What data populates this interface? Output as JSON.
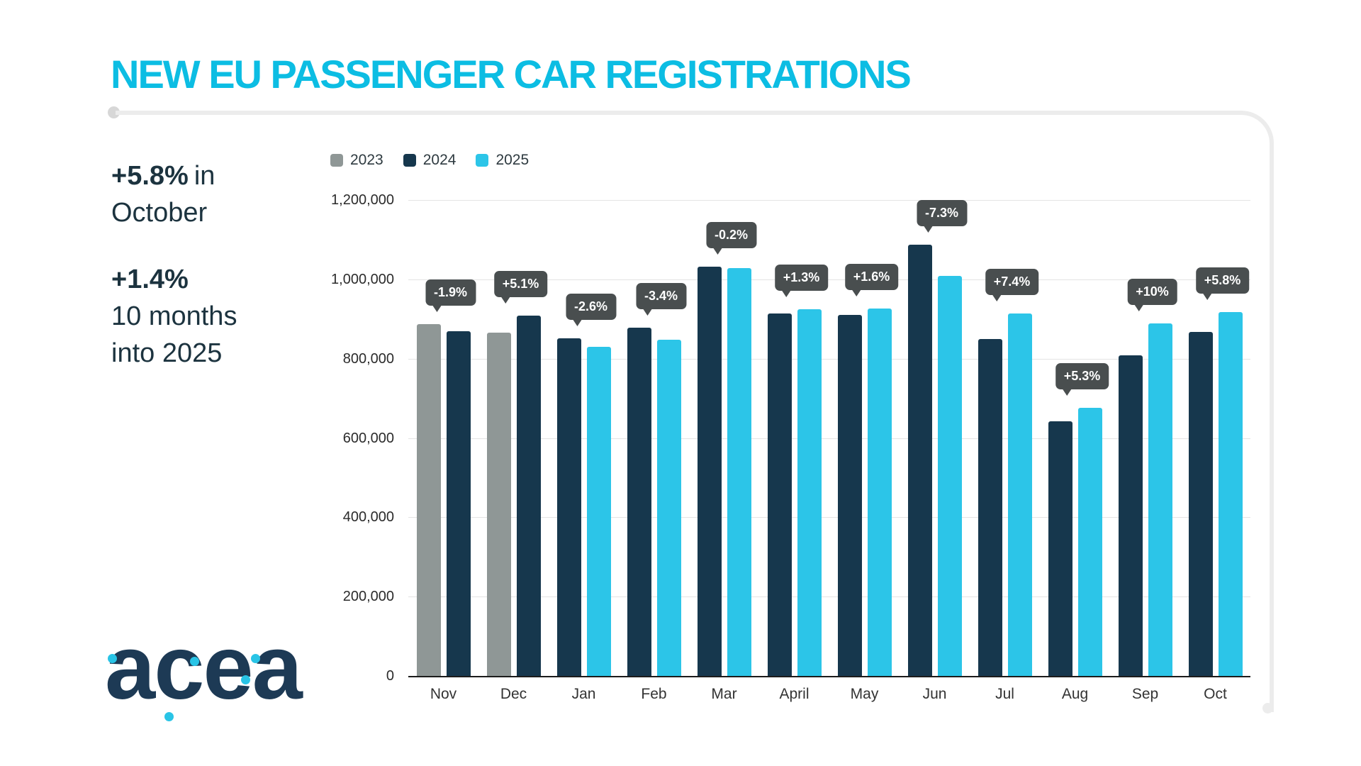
{
  "title": "NEW EU PASSENGER CAR REGISTRATIONS",
  "stats": [
    {
      "value": "+5.8%",
      "text_lines": [
        "in",
        "October"
      ]
    },
    {
      "value": "+1.4%",
      "text_lines": [
        "10 months",
        "into 2025"
      ]
    }
  ],
  "logo": {
    "text": "acea"
  },
  "colors": {
    "accent_cyan": "#0cbde3",
    "navy": "#16374d",
    "gray": "#8f9796",
    "badge": "#494e4f"
  },
  "chart_data": {
    "type": "bar",
    "title": "NEW EU PASSENGER CAR REGISTRATIONS",
    "categories": [
      "Nov",
      "Dec",
      "Jan",
      "Feb",
      "Mar",
      "April",
      "May",
      "Jun",
      "Jul",
      "Aug",
      "Sep",
      "Oct"
    ],
    "series": [
      {
        "name": "2023",
        "color": "#8f9796",
        "values": [
          887000,
          865000,
          null,
          null,
          null,
          null,
          null,
          null,
          null,
          null,
          null,
          null
        ]
      },
      {
        "name": "2024",
        "color": "#16374d",
        "values": [
          869000,
          909000,
          852000,
          878000,
          1031000,
          913000,
          911000,
          1088000,
          850000,
          642000,
          808000,
          867000
        ]
      },
      {
        "name": "2025",
        "color": "#2cc5e8",
        "values": [
          null,
          null,
          830000,
          848000,
          1029000,
          925000,
          926000,
          1009000,
          913000,
          676000,
          889000,
          917000
        ]
      }
    ],
    "labels": [
      "-1.9%",
      "+5.1%",
      "-2.6%",
      "-3.4%",
      "-0.2%",
      "+1.3%",
      "+1.6%",
      "-7.3%",
      "+7.4%",
      "+5.3%",
      "+10%",
      "+5.8%"
    ],
    "ylim": [
      0,
      1200000
    ],
    "yticks": [
      "0",
      "200,000",
      "400,000",
      "600,000",
      "800,000",
      "1,000,000",
      "1,200,000"
    ],
    "legend_position": "top-left",
    "grid": true
  }
}
